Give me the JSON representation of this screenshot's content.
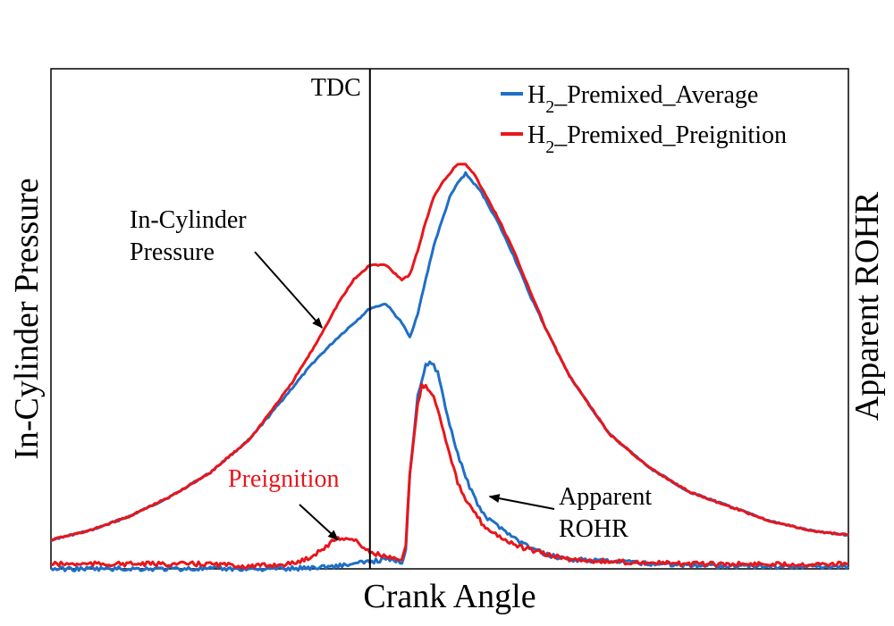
{
  "chart_data": {
    "type": "line",
    "xlabel": "Crank Angle",
    "ylabel_left": "In-Cylinder Pressure",
    "ylabel_right": "Apparent ROHR",
    "x_ticks": "none",
    "y_ticks": "none",
    "xlim": [
      0,
      100
    ],
    "ylim": [
      0,
      100
    ],
    "grid": false,
    "legend_position": "top-right",
    "reference_line": {
      "label": "TDC",
      "x": 40
    },
    "legend": [
      {
        "prefix": "H",
        "subscript": "2",
        "suffix": "_Premixed_Average",
        "color": "#1f6fc5"
      },
      {
        "prefix": "H",
        "subscript": "2",
        "suffix": "_Premixed_Preignition",
        "color": "#e8161b"
      }
    ],
    "annotations": [
      {
        "lines": [
          "In-Cylinder",
          "Pressure"
        ],
        "color": "#000000",
        "arrow_to": [
          34,
          50
        ]
      },
      {
        "lines": [
          "Preignition"
        ],
        "color": "#e8161b",
        "arrow_to": [
          36,
          6
        ]
      },
      {
        "lines": [
          "Apparent",
          "ROHR"
        ],
        "color": "#000000",
        "arrow_to": [
          55,
          15
        ]
      }
    ],
    "series": [
      {
        "name": "H2_Premixed_Average",
        "kind": "pressure",
        "color": "#1f6fc5",
        "x": [
          0,
          5,
          10,
          15,
          20,
          25,
          30,
          33,
          36,
          38,
          40,
          42,
          44,
          45,
          46,
          47,
          48,
          49,
          50,
          51,
          52,
          53,
          54,
          56,
          58,
          60,
          62,
          65,
          70,
          75,
          80,
          85,
          90,
          95,
          100
        ],
        "y": [
          6,
          8,
          11,
          15,
          20,
          27,
          37,
          43,
          48,
          51,
          54,
          55,
          51,
          48,
          53,
          60,
          67,
          72,
          77,
          80,
          82,
          80,
          78,
          72,
          65,
          57,
          50,
          40,
          28,
          21,
          16,
          13,
          10,
          8,
          7
        ]
      },
      {
        "name": "H2_Premixed_Preignition",
        "kind": "pressure",
        "color": "#e8161b",
        "x": [
          0,
          5,
          10,
          15,
          20,
          25,
          30,
          33,
          36,
          38,
          40,
          42,
          44,
          45,
          46,
          47,
          48,
          49,
          50,
          51,
          52,
          53,
          54,
          56,
          58,
          60,
          62,
          65,
          70,
          75,
          80,
          85,
          90,
          95,
          100
        ],
        "y": [
          6,
          8,
          11,
          15,
          20,
          27,
          38,
          46,
          55,
          60,
          63,
          63,
          60,
          61,
          66,
          72,
          77,
          80,
          82,
          84,
          84,
          82,
          79,
          73,
          66,
          58,
          50,
          40,
          28,
          21,
          16,
          13,
          10,
          8,
          7
        ]
      },
      {
        "name": "H2_Premixed_Average",
        "kind": "rohr",
        "color": "#1f6fc5",
        "x": [
          0,
          20,
          30,
          35,
          38,
          40,
          42,
          44,
          44.5,
          45,
          46,
          47,
          47.5,
          48,
          48.5,
          49,
          50,
          51,
          52,
          53,
          54,
          55,
          56,
          57,
          58,
          60,
          62,
          65,
          70,
          80,
          90,
          100
        ],
        "y": [
          0,
          0,
          0,
          0.5,
          1,
          1.5,
          2,
          1.5,
          4,
          20,
          36,
          42,
          43,
          42,
          41,
          37,
          30,
          24,
          19,
          15,
          12,
          10,
          9,
          8,
          6.5,
          4.5,
          3,
          2,
          1.5,
          0.8,
          0.5,
          0.5
        ]
      },
      {
        "name": "H2_Premixed_Preignition",
        "kind": "rohr",
        "color": "#e8161b",
        "x": [
          0,
          20,
          25,
          30,
          32,
          34,
          36,
          38,
          40,
          42,
          43,
          44,
          44.5,
          45,
          46,
          46.5,
          47,
          48,
          49,
          50,
          51,
          52,
          53,
          54,
          55,
          56,
          57,
          58,
          60,
          62,
          65,
          70,
          80,
          90,
          100
        ],
        "y": [
          1,
          1,
          0.5,
          1,
          2,
          4,
          6.5,
          6,
          3.5,
          2.5,
          2,
          1.5,
          5,
          20,
          34,
          38,
          38,
          36,
          30,
          24,
          18,
          14,
          12,
          9.5,
          8,
          7,
          6,
          5,
          4,
          3,
          2,
          1.5,
          1,
          1,
          1
        ]
      }
    ]
  }
}
